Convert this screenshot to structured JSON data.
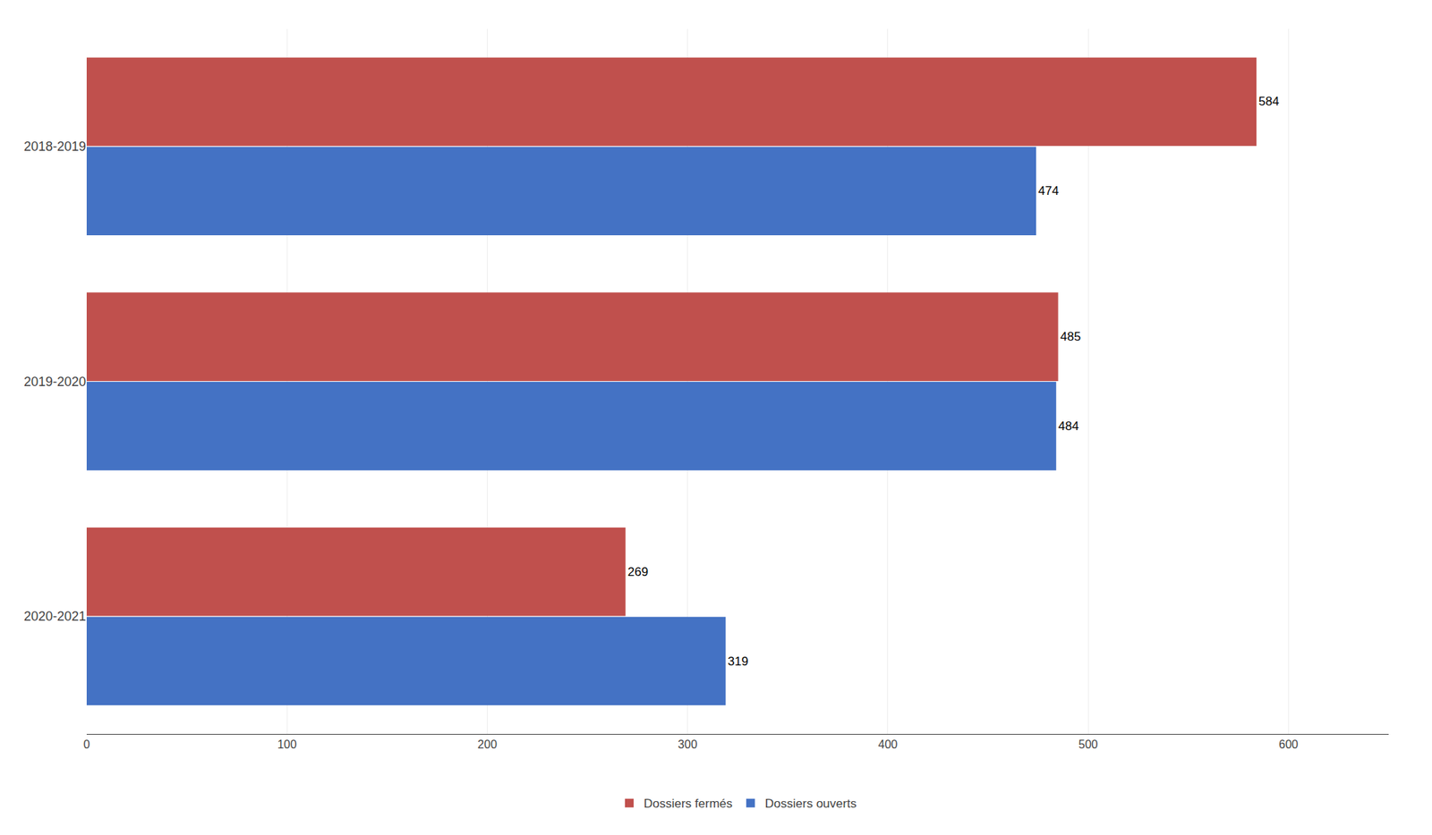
{
  "chart_data": {
    "type": "bar",
    "orientation": "horizontal",
    "categories": [
      "2020-2021",
      "2019-2020",
      "2018-2019"
    ],
    "series": [
      {
        "name": "Dossiers fermés",
        "color": "#C0504D",
        "values": [
          269,
          485,
          584
        ]
      },
      {
        "name": "Dossiers ouverts",
        "color": "#4472C4",
        "values": [
          319,
          484,
          474
        ]
      }
    ],
    "xlim": [
      0,
      650
    ],
    "xticks": [
      0,
      100,
      200,
      300,
      400,
      500,
      600
    ],
    "grid": true,
    "legend": "bottom",
    "data_labels": true
  }
}
